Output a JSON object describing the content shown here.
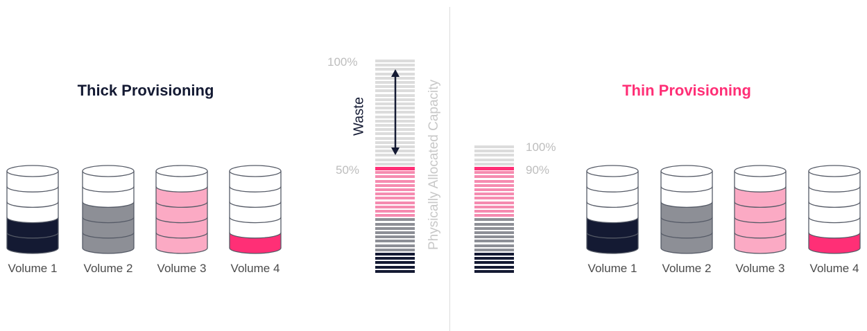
{
  "thick": {
    "title": "Thick Provisioning",
    "bar_labels": {
      "top": "100%",
      "mid": "50%"
    },
    "waste_label": "Waste",
    "capacity_label": "Physically Allocated Capacity",
    "volumes": [
      {
        "label": "Volume 1",
        "fill_levels": 2,
        "fill_color": "#141a33"
      },
      {
        "label": "Volume 2",
        "fill_levels": 3,
        "fill_color": "#8d8f96"
      },
      {
        "label": "Volume 3",
        "fill_levels": 4,
        "fill_color": "#fbaac4"
      },
      {
        "label": "Volume 4",
        "fill_levels": 1,
        "fill_color": "#ff2f76"
      }
    ]
  },
  "thin": {
    "title": "Thin Provisioning",
    "bar_labels": {
      "top": "100%",
      "mid": "90%"
    },
    "volumes": [
      {
        "label": "Volume 1",
        "fill_levels": 2,
        "fill_color": "#141a33"
      },
      {
        "label": "Volume 2",
        "fill_levels": 3,
        "fill_color": "#8d8f96"
      },
      {
        "label": "Volume 3",
        "fill_levels": 4,
        "fill_color": "#fbaac4"
      },
      {
        "label": "Volume 4",
        "fill_levels": 1,
        "fill_color": "#ff2f76"
      }
    ]
  },
  "colors": {
    "navy": "#141a33",
    "gray": "#8d8f96",
    "pink_light": "#f58bb0",
    "pink_accent": "#ff2f76",
    "waste_gray": "#dcdcdc"
  },
  "capacity_bars": {
    "levels_per_volume": 5,
    "thick_waste_fraction": 0.5,
    "thin_used_fraction": 0.9
  }
}
